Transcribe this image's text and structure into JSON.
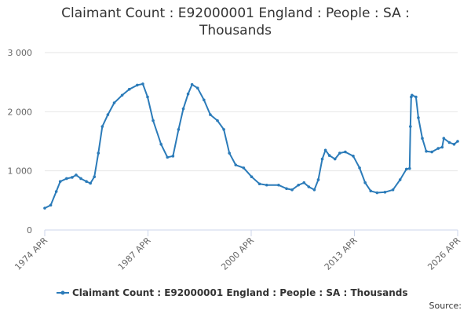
{
  "chart_data": {
    "type": "line",
    "title": "Claimant Count : E92000001 England : People : SA : Thousands",
    "source": "Source:",
    "x": [
      1974.25,
      1975.0,
      1975.7,
      1976.2,
      1977.0,
      1977.7,
      1978.2,
      1978.8,
      1979.5,
      1980.0,
      1980.5,
      1981.0,
      1981.5,
      1982.2,
      1983.0,
      1984.0,
      1984.9,
      1985.9,
      1986.6,
      1987.2,
      1987.9,
      1988.9,
      1989.7,
      1990.4,
      1991.1,
      1991.7,
      1992.3,
      1992.8,
      1993.5,
      1994.3,
      1995.1,
      1996.0,
      1996.8,
      1997.5,
      1998.3,
      1999.3,
      2000.3,
      2001.3,
      2002.2,
      2003.7,
      2004.7,
      2005.4,
      2006.2,
      2006.9,
      2007.5,
      2008.2,
      2008.7,
      2009.2,
      2009.6,
      2010.1,
      2010.8,
      2011.4,
      2012.1,
      2013.1,
      2013.9,
      2014.6,
      2015.3,
      2016.1,
      2017.1,
      2018.1,
      2019.0,
      2019.8,
      2020.2,
      2020.3,
      2020.4,
      2020.5,
      2021.0,
      2021.3,
      2021.8,
      2022.3,
      2023.0,
      2023.8,
      2024.3,
      2024.5,
      2025.2,
      2025.8,
      2026.25
    ],
    "series": [
      {
        "name": "Claimant Count : E92000001 England : People : SA : Thousands",
        "color": "#2b7bb9",
        "values": [
          370,
          420,
          650,
          820,
          870,
          890,
          930,
          870,
          820,
          790,
          900,
          1300,
          1750,
          1950,
          2150,
          2280,
          2380,
          2450,
          2470,
          2250,
          1850,
          1450,
          1230,
          1250,
          1700,
          2050,
          2300,
          2460,
          2400,
          2200,
          1950,
          1850,
          1700,
          1300,
          1100,
          1050,
          900,
          780,
          760,
          760,
          700,
          680,
          760,
          800,
          730,
          680,
          850,
          1200,
          1350,
          1260,
          1200,
          1300,
          1320,
          1250,
          1050,
          800,
          660,
          630,
          640,
          680,
          850,
          1030,
          1040,
          1750,
          2250,
          2280,
          2250,
          1900,
          1550,
          1330,
          1320,
          1380,
          1400,
          1550,
          1480,
          1450,
          1500
        ]
      }
    ],
    "xlim": [
      1974.25,
      2026.25
    ],
    "xticks": [
      {
        "value": 1974.25,
        "label": "1974 APR"
      },
      {
        "value": 1987.25,
        "label": "1987 APR"
      },
      {
        "value": 2000.25,
        "label": "2000 APR"
      },
      {
        "value": 2013.25,
        "label": "2013 APR"
      },
      {
        "value": 2026.25,
        "label": "2026 APR"
      }
    ],
    "ylim": [
      0,
      3000
    ],
    "yticks": [
      0,
      {
        "value": 1000,
        "label": "1 000"
      },
      {
        "value": 2000,
        "label": "2 000"
      },
      {
        "value": 3000,
        "label": "3 000"
      }
    ],
    "grid": true,
    "legend": "bottom"
  }
}
